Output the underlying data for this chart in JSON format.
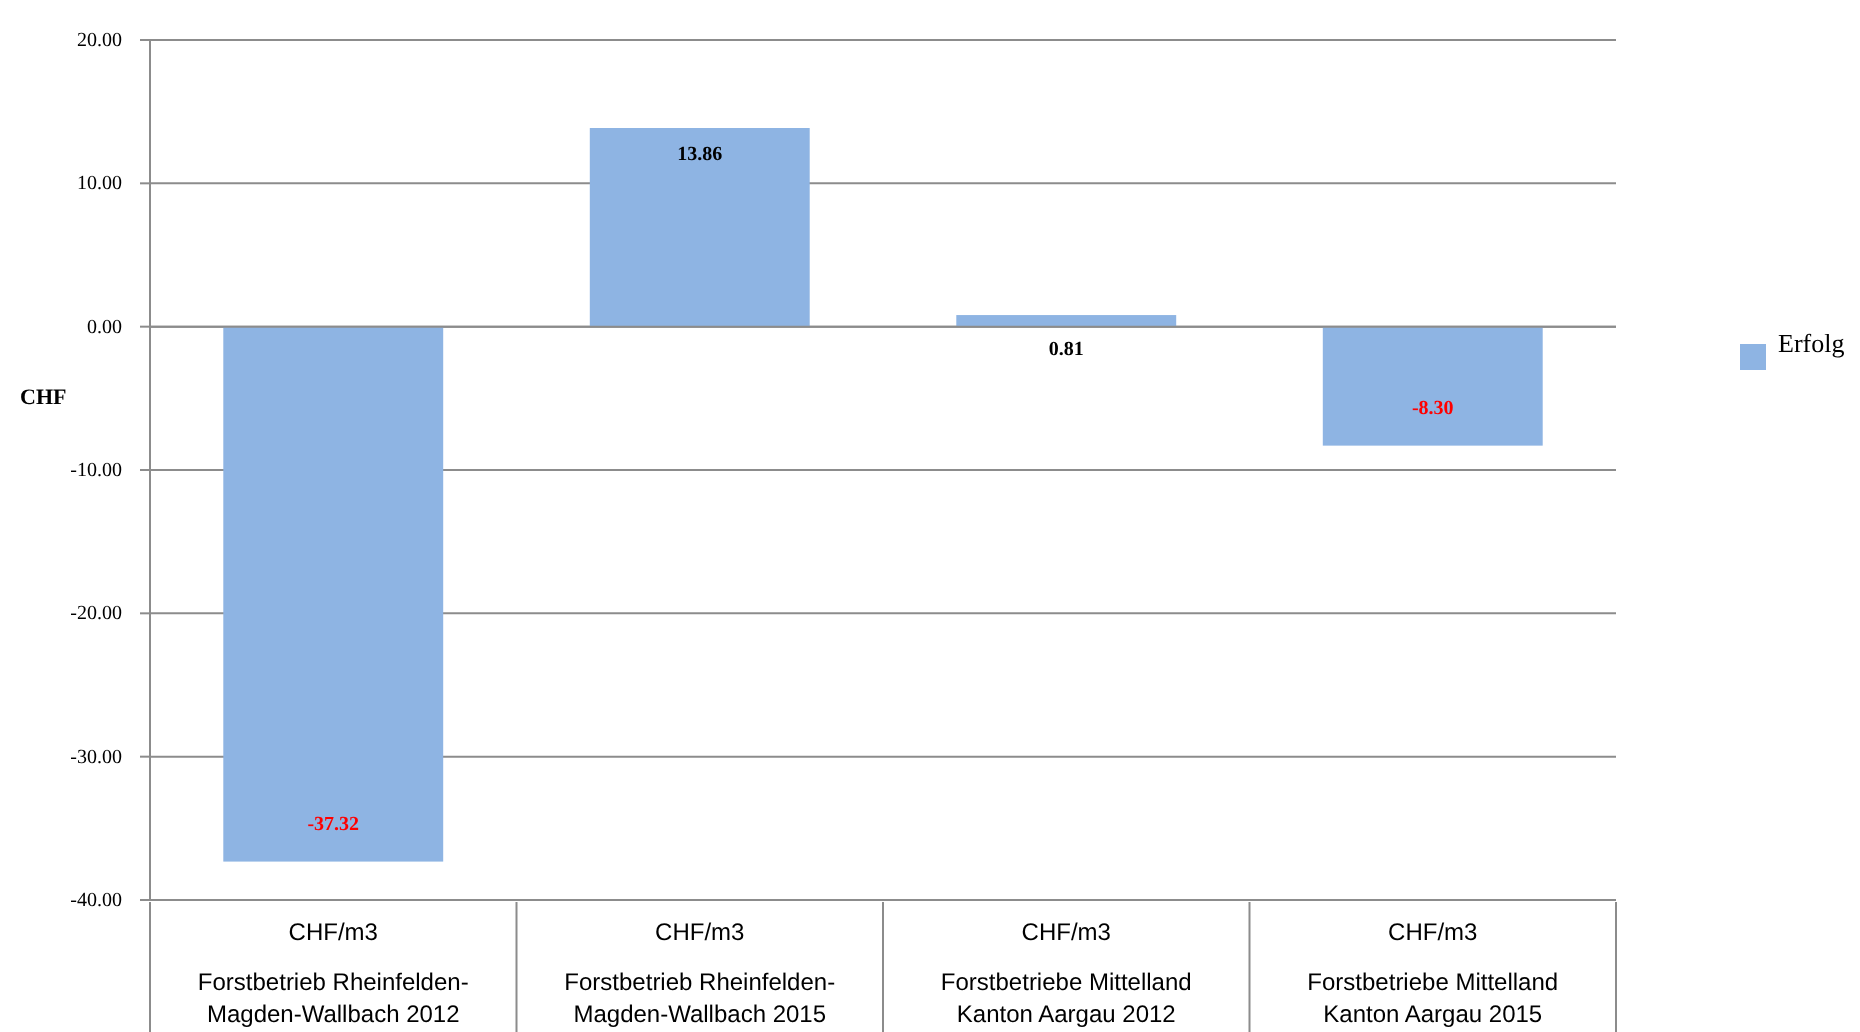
{
  "chart_data": {
    "type": "bar",
    "ylabel": "CHF",
    "categories": [
      "CHF/m3\nForstbetrieb Rheinfelden-\nMagden-Wallbach 2012",
      "CHF/m3\nForstbetrieb Rheinfelden-\nMagden-Wallbach 2015",
      "CHF/m3\nForstbetriebe Mittelland\nKanton Aargau 2012",
      "CHF/m3\nForstbetriebe Mittelland\nKanton Aargau 2015"
    ],
    "series": [
      {
        "name": "Erfolg",
        "color": "#8eb4e3",
        "values": [
          -37.32,
          13.86,
          0.81,
          -8.3
        ]
      }
    ],
    "ylim": [
      -40,
      20
    ],
    "yticks": [
      {
        "value": -40,
        "label": "-40.00"
      },
      {
        "value": -30,
        "label": "-30.00"
      },
      {
        "value": -20,
        "label": "-20.00"
      },
      {
        "value": -10,
        "label": "-10.00"
      },
      {
        "value": 0,
        "label": "0.00"
      },
      {
        "value": 10,
        "label": "10.00"
      },
      {
        "value": 20,
        "label": "20.00"
      }
    ],
    "value_labels": [
      "-37.32",
      "13.86",
      "0.81",
      "-8.30"
    ],
    "grid": "y",
    "legend": "right"
  }
}
